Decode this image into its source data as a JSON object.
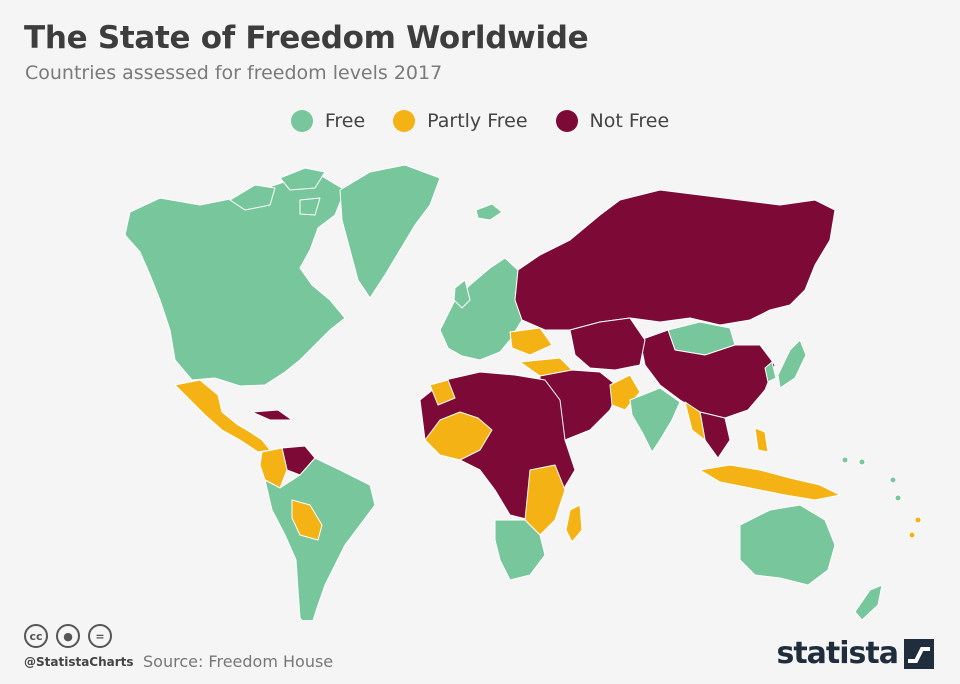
{
  "title": "The State of Freedom Worldwide",
  "subtitle": "Countries assessed for freedom levels 2017",
  "legend": [
    {
      "label": "Free",
      "color": "#78c79c"
    },
    {
      "label": "Partly Free",
      "color": "#f5b214"
    },
    {
      "label": "Not Free",
      "color": "#7d0a36"
    }
  ],
  "colors": {
    "free": "#78c79c",
    "partly": "#f5b214",
    "not_free": "#7d0a36",
    "border": "#ffffff"
  },
  "footer": {
    "handle": "@StatistaCharts",
    "source": "Source: Freedom House",
    "license_icons": [
      "cc-icon",
      "attribution-icon",
      "no-derivatives-icon"
    ]
  },
  "brand": "statista"
}
